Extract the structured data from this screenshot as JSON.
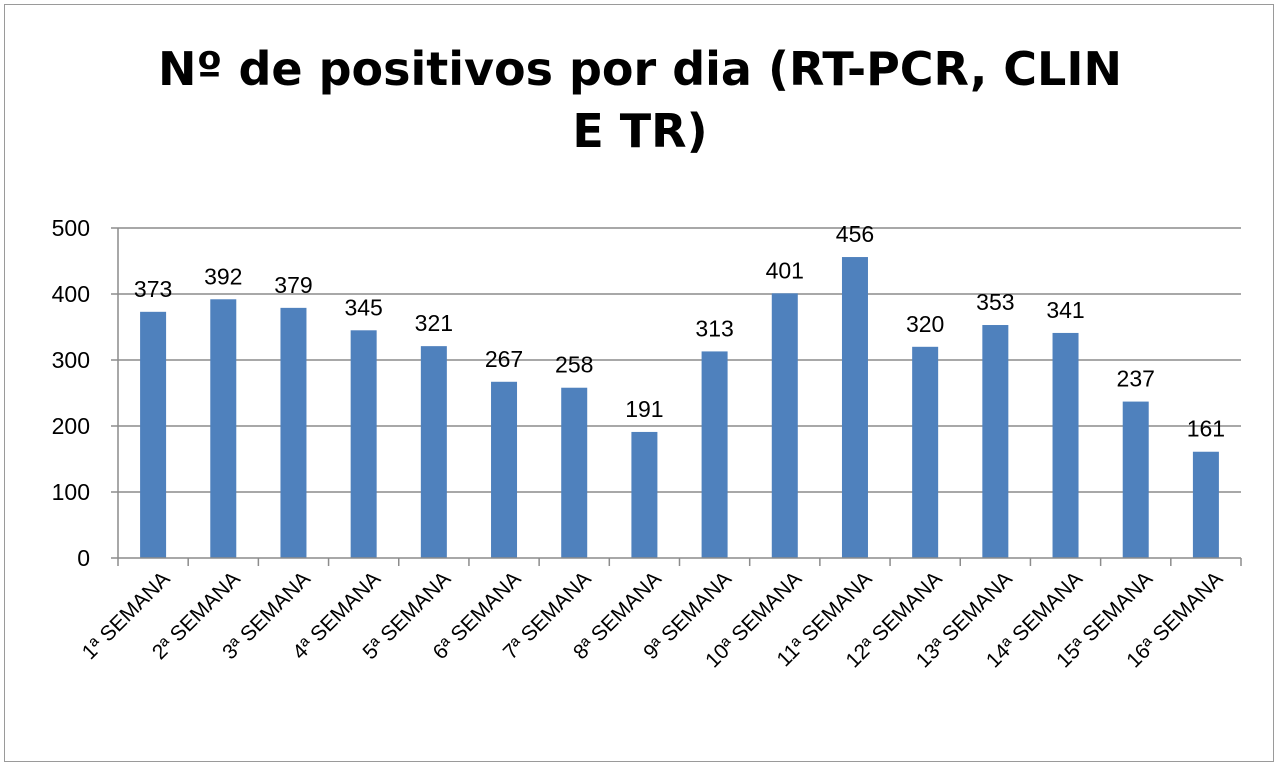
{
  "chart_data": {
    "type": "bar",
    "title": "Nº de positivos por dia (RT-PCR, CLIN E TR)",
    "title_lines": [
      "Nº de positivos por dia (RT-PCR, CLIN",
      "E TR)"
    ],
    "xlabel": "",
    "ylabel": "",
    "ylim": [
      0,
      500
    ],
    "yticks": [
      0,
      100,
      200,
      300,
      400,
      500
    ],
    "grid": true,
    "legend": "none",
    "bar_color": "#4f81bd",
    "categories": [
      "1ª SEMANA",
      "2ª SEMANA",
      "3ª SEMANA",
      "4ª SEMANA",
      "5ª SEMANA",
      "6ª SEMANA",
      "7ª SEMANA",
      "8ª SEMANA",
      "9ª SEMANA",
      "10ª SEMANA",
      "11ª SEMANA",
      "12ª SEMANA",
      "13ª SEMANA",
      "14ª SEMANA",
      "15ª SEMANA",
      "16ª SEMANA"
    ],
    "values": [
      373,
      392,
      379,
      345,
      321,
      267,
      258,
      191,
      313,
      401,
      456,
      320,
      353,
      341,
      237,
      161
    ]
  }
}
